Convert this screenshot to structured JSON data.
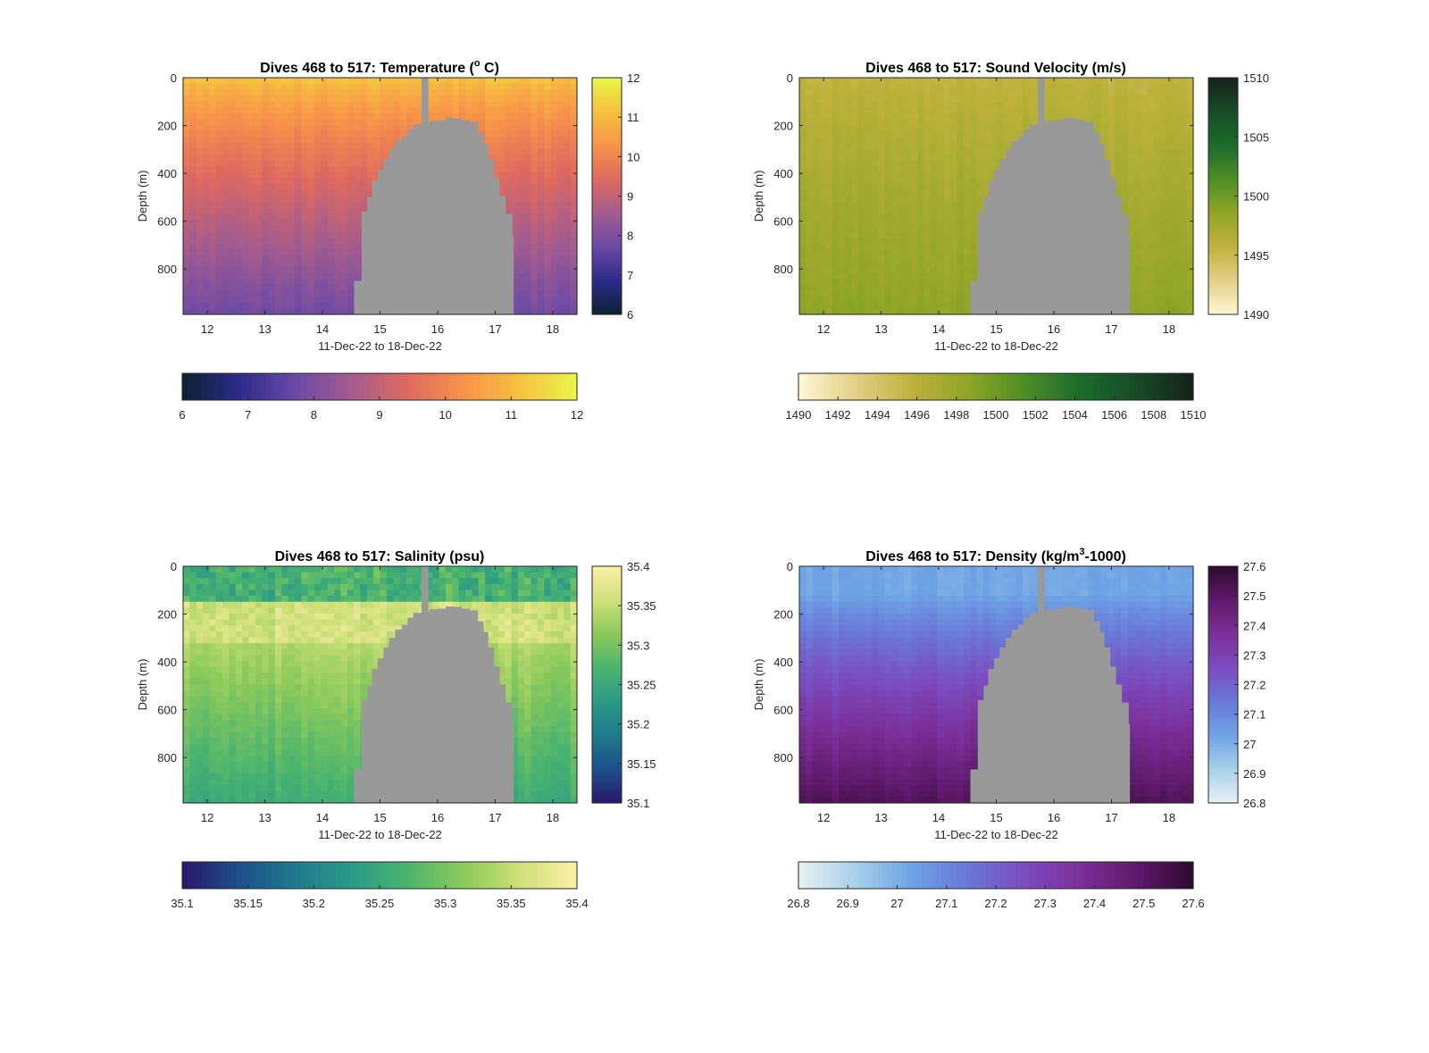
{
  "figure": {
    "background": "#ffffff",
    "terrain_color": "#999999"
  },
  "chart_data": [
    {
      "type": "heatmap",
      "title": "Dives 468 to 517: Temperature (° C)",
      "title_parts": [
        "Dives 468 to 517: Temperature (",
        "o",
        " C)"
      ],
      "xlabel": "11-Dec-22 to 18-Dec-22",
      "ylabel": "Depth (m)",
      "x_ticks": [
        "12",
        "13",
        "14",
        "15",
        "16",
        "17",
        "18"
      ],
      "y_ticks": [
        "0",
        "200",
        "400",
        "600",
        "800"
      ],
      "xlim": [
        11.58,
        18.42
      ],
      "ylim": [
        0,
        990
      ],
      "y_reversed": true,
      "colormap": [
        "#0b2230",
        "#2d2a8a",
        "#6a4aa6",
        "#a45c8e",
        "#de6a5f",
        "#f7934a",
        "#f6c23f",
        "#e9f64a"
      ],
      "clim": [
        6,
        12
      ],
      "surface_value": 11.2,
      "bottom_value": 7.8,
      "vertical_colorbar_ticks": [
        "6",
        "7",
        "8",
        "9",
        "10",
        "11",
        "12"
      ],
      "horizontal_colorbar_ticks": [
        "6",
        "7",
        "8",
        "9",
        "10",
        "11",
        "12"
      ]
    },
    {
      "type": "heatmap",
      "title": "Dives 468 to 517: Sound Velocity (m/s)",
      "title_parts": [
        "Dives 468 to 517: Sound Velocity (m/s)"
      ],
      "xlabel": "11-Dec-22 to 18-Dec-22",
      "ylabel": "Depth (m)",
      "x_ticks": [
        "12",
        "13",
        "14",
        "15",
        "16",
        "17",
        "18"
      ],
      "y_ticks": [
        "0",
        "200",
        "400",
        "600",
        "800"
      ],
      "xlim": [
        11.58,
        18.42
      ],
      "ylim": [
        0,
        990
      ],
      "y_reversed": true,
      "colormap": [
        "#fdf8d4",
        "#e3cf87",
        "#bfb23d",
        "#8fa526",
        "#4f8e25",
        "#1c6b2c",
        "#184a27",
        "#14221b"
      ],
      "clim": [
        1490,
        1510
      ],
      "surface_value": 1495.6,
      "bottom_value": 1498.6,
      "vertical_colorbar_ticks": [
        "1490",
        "1495",
        "1500",
        "1505",
        "1510"
      ],
      "horizontal_colorbar_ticks": [
        "1490",
        "1492",
        "1494",
        "1496",
        "1498",
        "1500",
        "1502",
        "1504",
        "1506",
        "1508",
        "1510"
      ]
    },
    {
      "type": "heatmap",
      "title": "Dives 468 to 517: Salinity (psu)",
      "title_parts": [
        "Dives 468 to 517: Salinity (psu)"
      ],
      "xlabel": "11-Dec-22 to 18-Dec-22",
      "ylabel": "Depth (m)",
      "x_ticks": [
        "12",
        "13",
        "14",
        "15",
        "16",
        "17",
        "18"
      ],
      "y_ticks": [
        "0",
        "200",
        "400",
        "600",
        "800"
      ],
      "xlim": [
        11.58,
        18.42
      ],
      "ylim": [
        0,
        990
      ],
      "y_reversed": true,
      "colormap": [
        "#29186b",
        "#1d4f8a",
        "#1f7a8c",
        "#2b9a86",
        "#4bb46e",
        "#8cca5b",
        "#cfe07a",
        "#fbf1a8"
      ],
      "clim": [
        35.1,
        35.4
      ],
      "surface_value": 35.27,
      "bottom_value": 35.26,
      "vertical_colorbar_ticks": [
        "35.1",
        "35.15",
        "35.2",
        "35.25",
        "35.3",
        "35.35",
        "35.4"
      ],
      "horizontal_colorbar_ticks": [
        "35.1",
        "35.15",
        "35.2",
        "35.25",
        "35.3",
        "35.35",
        "35.4"
      ]
    },
    {
      "type": "heatmap",
      "title": "Dives 468 to 517: Density (kg/m³-1000)",
      "title_parts": [
        "Dives 468 to 517: Density (kg/m",
        "3",
        "-1000)"
      ],
      "xlabel": "11-Dec-22 to 18-Dec-22",
      "ylabel": "Depth (m)",
      "x_ticks": [
        "12",
        "13",
        "14",
        "15",
        "16",
        "17",
        "18"
      ],
      "y_ticks": [
        "0",
        "200",
        "400",
        "600",
        "800"
      ],
      "xlim": [
        11.58,
        18.42
      ],
      "ylim": [
        0,
        990
      ],
      "y_reversed": true,
      "colormap": [
        "#e7f1f4",
        "#a9d0e8",
        "#6ea3e4",
        "#6a78d8",
        "#7a4dbf",
        "#7b2f98",
        "#5e1a6a",
        "#2c0a2c"
      ],
      "clim": [
        26.8,
        27.6
      ],
      "surface_value": 27.02,
      "bottom_value": 27.52,
      "vertical_colorbar_ticks": [
        "27.6",
        "27.5",
        "27.4",
        "27.3",
        "27.2",
        "27.1",
        "27",
        "26.9",
        "26.8"
      ],
      "horizontal_colorbar_ticks": [
        "26.8",
        "26.9",
        "27",
        "27.1",
        "27.2",
        "27.3",
        "27.4",
        "27.5",
        "27.6"
      ]
    }
  ]
}
